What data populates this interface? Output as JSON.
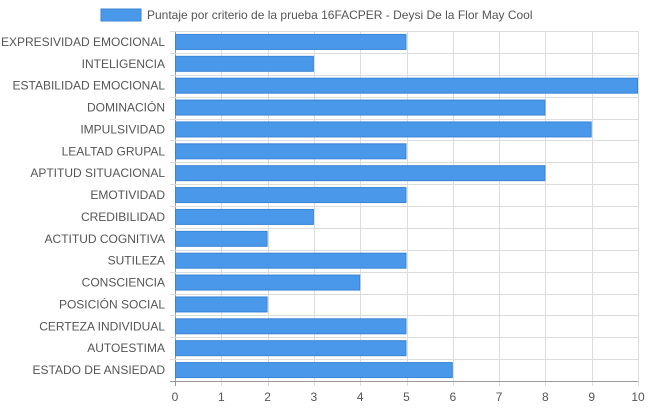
{
  "chart_data": {
    "type": "bar",
    "orientation": "horizontal",
    "legend_position": "top-center",
    "grid": true,
    "xlim": [
      0,
      10
    ],
    "x_ticks": [
      "0",
      "1",
      "2",
      "3",
      "4",
      "5",
      "6",
      "7",
      "8",
      "9",
      "10"
    ],
    "categories": [
      "EXPRESIVIDAD EMOCIONAL",
      "INTELIGENCIA",
      "ESTABILIDAD EMOCIONAL",
      "DOMINACIÓN",
      "IMPULSIVIDAD",
      "LEALTAD GRUPAL",
      "APTITUD SITUACIONAL",
      "EMOTIVIDAD",
      "CREDIBILIDAD",
      "ACTITUD COGNITIVA",
      "SUTILEZA",
      "CONSCIENCIA",
      "POSICIÓN SOCIAL",
      "CERTEZA INDIVIDUAL",
      "AUTOESTIMA",
      "ESTADO DE ANSIEDAD"
    ],
    "series": [
      {
        "name": "Puntaje por criterio de la prueba 16FACPER - Deysi De la Flor May Cool",
        "color": "#4a98ea",
        "border_color": "#3a84d6",
        "values": [
          5,
          3,
          10,
          8,
          9,
          5,
          8,
          5,
          3,
          2,
          5,
          4,
          2,
          5,
          5,
          6
        ]
      }
    ]
  },
  "legend": {
    "label": "Puntaje por criterio de la prueba 16FACPER - Deysi De la Flor May Cool"
  },
  "colors": {
    "grid": "#dcdcdc",
    "axis": "#999999",
    "label": "#555555"
  }
}
